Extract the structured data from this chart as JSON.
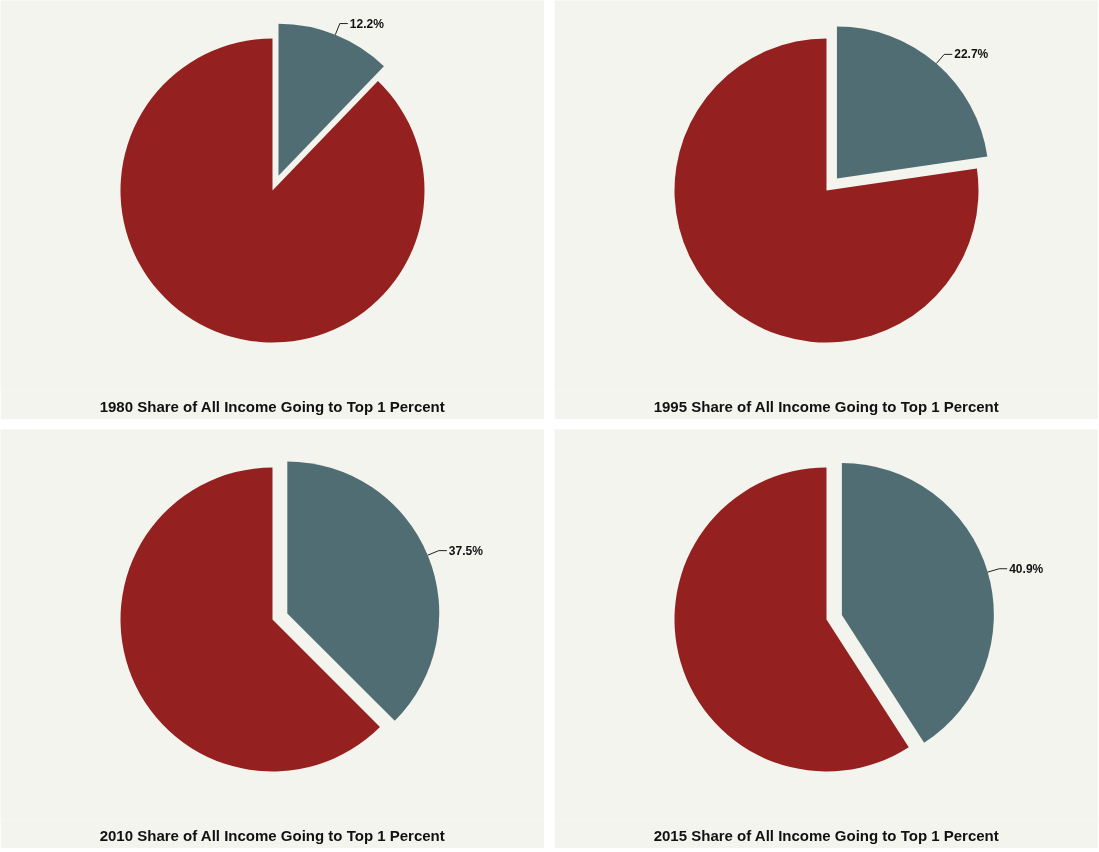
{
  "chart_data": [
    {
      "type": "pie",
      "title": "1980 Share of All Income Going to Top 1 Percent",
      "categories": [
        null,
        null
      ],
      "values": [
        12.2,
        87.8
      ],
      "colors": [
        "#506d74",
        "#952020"
      ],
      "value_labels": [
        "12.2%",
        null
      ]
    },
    {
      "type": "pie",
      "title": "1995 Share of All Income Going to Top 1 Percent",
      "categories": [
        null,
        null
      ],
      "values": [
        22.7,
        77.3
      ],
      "colors": [
        "#506d74",
        "#952020"
      ],
      "value_labels": [
        "22.7%",
        null
      ]
    },
    {
      "type": "pie",
      "title": "2010 Share of All Income Going to Top 1 Percent",
      "categories": [
        null,
        null
      ],
      "values": [
        37.5,
        62.5
      ],
      "colors": [
        "#506d74",
        "#952020"
      ],
      "value_labels": [
        "37.5%",
        null
      ]
    },
    {
      "type": "pie",
      "title": "2015 Share of All Income Going to Top 1 Percent",
      "categories": [
        null,
        null
      ],
      "values": [
        40.9,
        59.1
      ],
      "colors": [
        "#506d74",
        "#952020"
      ],
      "value_labels": [
        "40.9%",
        null
      ]
    }
  ]
}
